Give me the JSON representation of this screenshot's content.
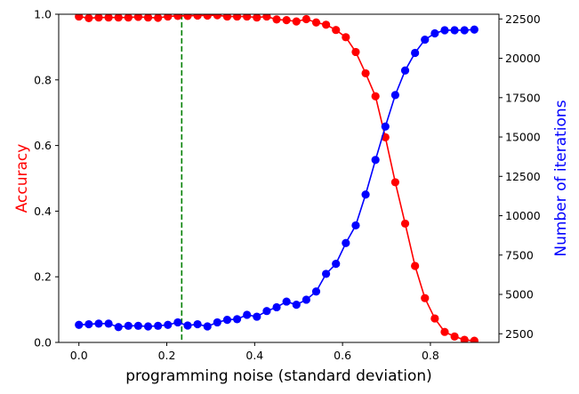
{
  "chart_data": {
    "type": "line",
    "title": "",
    "xlabel": "programming noise (standard deviation)",
    "ylabel_left": "Accuracy",
    "ylabel_right": "Number of iterations",
    "xlim": [
      -0.046,
      0.956
    ],
    "ylim_left": [
      0,
      1
    ],
    "ylim_right": [
      1950,
      22800
    ],
    "x_ticks": [
      0.0,
      0.2,
      0.4,
      0.6,
      0.8
    ],
    "x_tick_labels": [
      "0.0",
      "0.2",
      "0.4",
      "0.6",
      "0.8"
    ],
    "y_left_ticks": [
      0.0,
      0.2,
      0.4,
      0.6,
      0.8,
      1.0
    ],
    "y_left_tick_labels": [
      "0.0",
      "0.2",
      "0.4",
      "0.6",
      "0.8",
      "1.0"
    ],
    "y_right_ticks": [
      2500,
      5000,
      7500,
      10000,
      12500,
      15000,
      17500,
      20000,
      22500
    ],
    "y_right_tick_labels": [
      "2500",
      "5000",
      "7500",
      "10000",
      "12500",
      "15000",
      "17500",
      "20000",
      "22500"
    ],
    "grid": false,
    "vline": {
      "x": 0.234,
      "color": "#008000",
      "style": "dashed"
    },
    "x": [
      0.0,
      0.0225,
      0.045,
      0.0675,
      0.09,
      0.1125,
      0.135,
      0.1575,
      0.18,
      0.2025,
      0.225,
      0.2475,
      0.27,
      0.2925,
      0.315,
      0.3375,
      0.36,
      0.3825,
      0.405,
      0.4275,
      0.45,
      0.4725,
      0.495,
      0.5175,
      0.54,
      0.5625,
      0.585,
      0.6075,
      0.63,
      0.6525,
      0.675,
      0.6975,
      0.72,
      0.7425,
      0.765,
      0.7875,
      0.81,
      0.8325,
      0.855,
      0.8775,
      0.9
    ],
    "series": [
      {
        "name": "Accuracy",
        "axis": "left",
        "color": "#ff0000",
        "values": [
          0.993,
          0.988,
          0.99,
          0.99,
          0.99,
          0.99,
          0.992,
          0.99,
          0.989,
          0.993,
          0.995,
          0.995,
          0.996,
          0.996,
          0.997,
          0.993,
          0.993,
          0.993,
          0.99,
          0.993,
          0.984,
          0.982,
          0.978,
          0.985,
          0.975,
          0.968,
          0.952,
          0.93,
          0.885,
          0.82,
          0.75,
          0.625,
          0.488,
          0.362,
          0.233,
          0.135,
          0.073,
          0.032,
          0.018,
          0.008,
          0.005
        ]
      },
      {
        "name": "Number of iterations",
        "axis": "right",
        "color": "#0000ff",
        "values": [
          3065,
          3105,
          3145,
          3145,
          2925,
          3005,
          3005,
          2965,
          3005,
          3065,
          3225,
          3025,
          3105,
          2965,
          3225,
          3385,
          3425,
          3705,
          3585,
          3945,
          4185,
          4545,
          4345,
          4665,
          5185,
          6305,
          6945,
          8265,
          9385,
          11345,
          13545,
          15665,
          17665,
          19225,
          20345,
          21185,
          21585,
          21785,
          21785,
          21785,
          21825
        ]
      }
    ]
  }
}
